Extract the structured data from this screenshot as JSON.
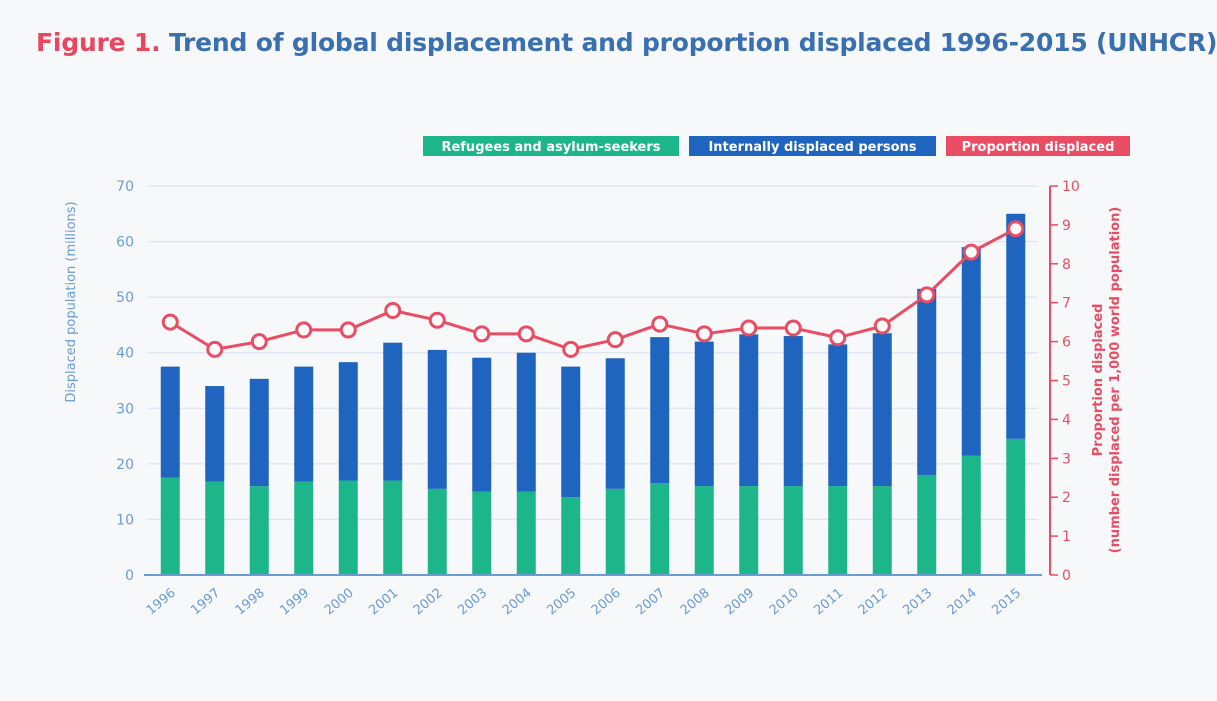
{
  "title": {
    "figure_label": "Figure 1.",
    "text": "Trend of global displacement and proportion displaced 1996-2015 (UNHCR)"
  },
  "colors": {
    "refugees": "#1db58a",
    "idp": "#1f64be",
    "proportion": "#ea4d63",
    "axis_left": "#6a9bd4",
    "grid": "#dde4ee"
  },
  "chart_data": {
    "type": "bar",
    "stacked": true,
    "categories": [
      "1996",
      "1997",
      "1998",
      "1999",
      "2000",
      "2001",
      "2002",
      "2003",
      "2004",
      "2005",
      "2006",
      "2007",
      "2008",
      "2009",
      "2010",
      "2011",
      "2012",
      "2013",
      "2014",
      "2015"
    ],
    "series": [
      {
        "name": "Refugees and asylum-seekers",
        "axis": "left",
        "values": [
          17.5,
          16.8,
          16.0,
          16.8,
          17.0,
          17.0,
          15.5,
          15.0,
          15.0,
          14.0,
          15.5,
          16.5,
          16.0,
          16.0,
          16.0,
          16.0,
          16.0,
          18.0,
          21.5,
          24.5
        ]
      },
      {
        "name": "Internally displaced persons",
        "axis": "left",
        "values": [
          20.0,
          17.2,
          19.3,
          20.7,
          21.3,
          24.8,
          25.0,
          24.1,
          25.0,
          23.5,
          23.5,
          26.3,
          26.0,
          27.3,
          27.0,
          25.5,
          27.5,
          33.5,
          37.5,
          40.5
        ]
      },
      {
        "name": "Proportion displaced",
        "type": "line",
        "axis": "right",
        "values": [
          6.5,
          5.8,
          6.0,
          6.3,
          6.3,
          6.8,
          6.55,
          6.2,
          6.2,
          5.8,
          6.05,
          6.45,
          6.2,
          6.35,
          6.35,
          6.1,
          6.4,
          7.2,
          8.3,
          8.9
        ]
      }
    ],
    "ylabel": "Displaced population (millions)",
    "ylim": [
      0,
      70
    ],
    "yticks": [
      0,
      10,
      20,
      30,
      40,
      50,
      60,
      70
    ],
    "y2label_line1": "Proportion displaced",
    "y2label_line2": "(number displaced per 1,000 world population)",
    "y2lim": [
      0,
      10
    ],
    "y2ticks": [
      0,
      1,
      2,
      3,
      4,
      5,
      6,
      7,
      8,
      9,
      10
    ],
    "grid": true,
    "legend_position": "top-right"
  }
}
